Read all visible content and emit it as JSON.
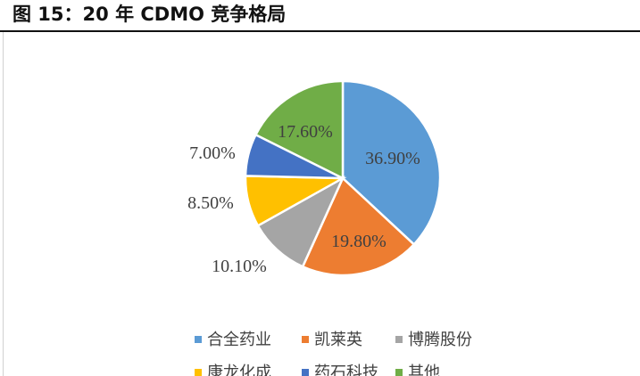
{
  "figure": {
    "title": "图 15：20 年 CDMO 竞争格局"
  },
  "chart_data": {
    "type": "pie",
    "title": "",
    "slices": [
      {
        "name": "合全药业",
        "value": 36.9,
        "label": "36.90%",
        "color": "#5b9bd5"
      },
      {
        "name": "凯莱英",
        "value": 19.8,
        "label": "19.80%",
        "color": "#ed7d31"
      },
      {
        "name": "博腾股份",
        "value": 10.1,
        "label": "10.10%",
        "color": "#a5a5a5"
      },
      {
        "name": "康龙化成",
        "value": 8.5,
        "label": "8.50%",
        "color": "#ffc000"
      },
      {
        "name": "药石科技",
        "value": 7.0,
        "label": "7.00%",
        "color": "#4472c4"
      },
      {
        "name": "其他",
        "value": 17.6,
        "label": "17.60%",
        "color": "#70ad47"
      }
    ],
    "start_angle": "12 o'clock, clockwise",
    "legend": "bottom"
  }
}
